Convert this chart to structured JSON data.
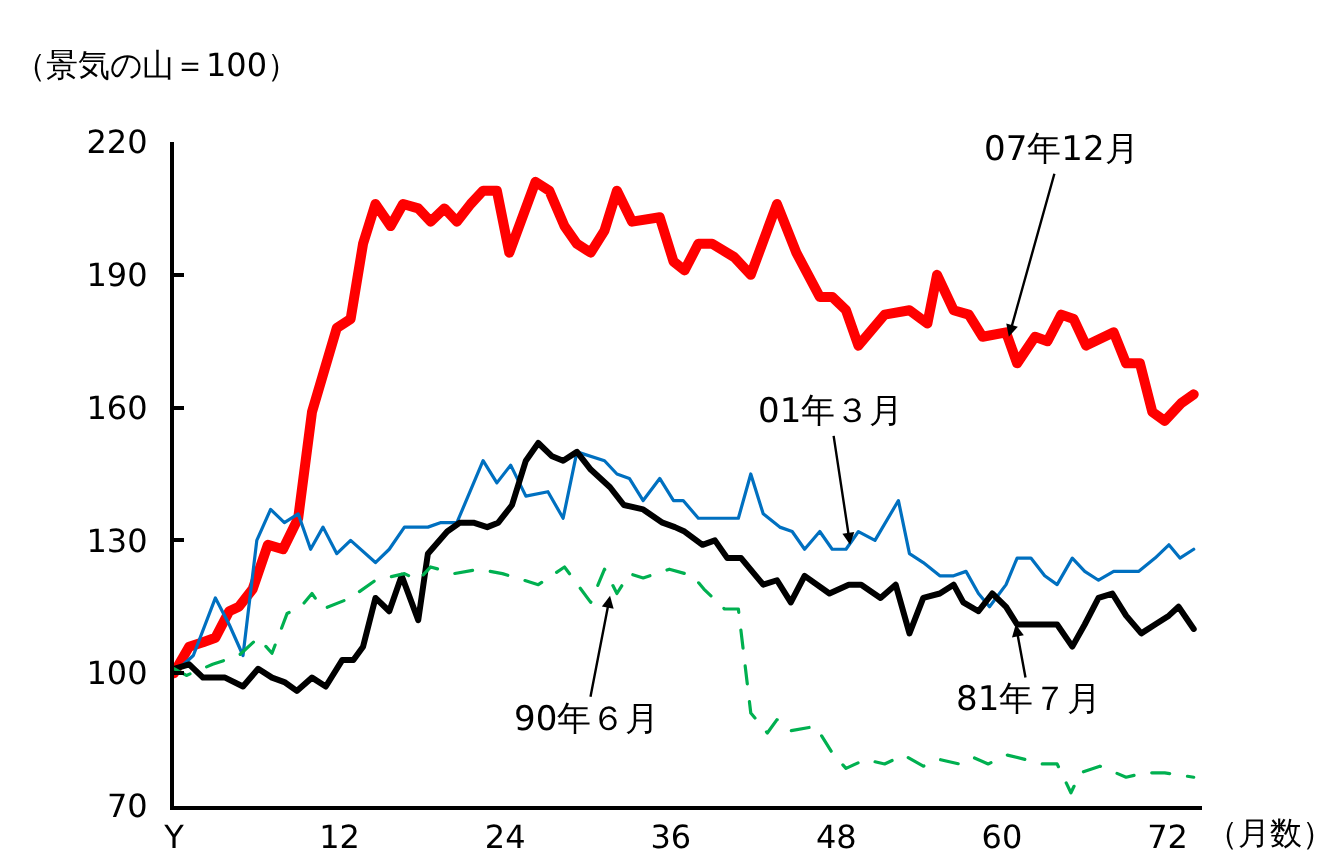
{
  "chart_data": {
    "type": "line",
    "ylabel": "（景気の山＝100）",
    "xlabel": "（月数）",
    "xlim": [
      0,
      74.5
    ],
    "ylim": [
      70,
      220
    ],
    "xticks": [
      {
        "value": 0,
        "label": "Y"
      },
      12,
      24,
      36,
      48,
      60,
      72
    ],
    "yticks": [
      70,
      100,
      130,
      160,
      190,
      220
    ],
    "grid": false,
    "marker": "none",
    "series": [
      {
        "color": "#ff0000",
        "x": [
          0,
          1.1,
          2.1,
          3,
          4,
          4.7,
          5.7,
          6.8,
          7.9,
          9,
          10,
          11.8,
          12.8,
          13.7,
          14.6,
          15.7,
          16.6,
          17.7,
          18.6,
          19.6,
          20.5,
          21.5,
          22.4,
          23.4,
          24.3,
          26.2,
          27.2,
          28.3,
          29.2,
          30.2,
          31.2,
          32.1,
          33.2,
          35.2,
          36.2,
          37,
          38,
          39,
          40.6,
          41.8,
          43.7,
          45.1,
          46.8,
          47.7,
          48.7,
          49.6,
          51.5,
          53.3,
          54.6,
          55.3,
          56.5,
          57.6,
          58.6,
          60.3,
          61.1,
          62.4,
          63.3,
          64.3,
          65.2,
          66.1,
          68.1,
          69,
          70,
          70.9,
          71.8,
          73,
          73.9
        ],
        "values": [
          100,
          106,
          107,
          108,
          114,
          115,
          119,
          129,
          128,
          135,
          159,
          178,
          180,
          197,
          206,
          201,
          206,
          205,
          202,
          205,
          202,
          206,
          209,
          209,
          195,
          211,
          209,
          201,
          197,
          195,
          200,
          209,
          202,
          203,
          193,
          191,
          197,
          197,
          194,
          190,
          206,
          195,
          185,
          185,
          182,
          174,
          181,
          182,
          179,
          190,
          182,
          181,
          176,
          177,
          170,
          176,
          175,
          181,
          180,
          174,
          177,
          170,
          170,
          159,
          157,
          161,
          163
        ]
      },
      {
        "color": "#0070c0",
        "x": [
          0,
          1.4,
          3,
          4,
          5,
          6,
          7,
          8,
          9,
          9.9,
          10.8,
          11.8,
          12.8,
          14.6,
          15.6,
          16.7,
          18.4,
          19.3,
          20.5,
          22.4,
          23.4,
          24.4,
          25.5,
          27.1,
          28.2,
          29.2,
          31.2,
          32.1,
          33,
          34,
          35.2,
          36.2,
          36.9,
          38,
          40.9,
          41.8,
          42.7,
          43.9,
          44.8,
          45.7,
          46.8,
          47.7,
          48.7,
          49.6,
          50.8,
          52.5,
          53.3,
          54.3,
          55.5,
          56.5,
          57.4,
          58.3,
          59.1,
          60.3,
          61.1,
          62.1,
          63.1,
          64,
          65.1,
          66,
          67,
          68.1,
          69,
          69.9,
          71.1,
          72.1,
          72.9,
          73.9
        ],
        "values": [
          100,
          104,
          117,
          111,
          104,
          130,
          137,
          134,
          136,
          128,
          133,
          127,
          130,
          125,
          128,
          133,
          133,
          134,
          134,
          148,
          143,
          147,
          140,
          141,
          135,
          150,
          148,
          145,
          144,
          139,
          144,
          139,
          139,
          135,
          135,
          145,
          136,
          133,
          132,
          128,
          132,
          128,
          128,
          132,
          130,
          139,
          127,
          125,
          122,
          122,
          123,
          118,
          115,
          120,
          126,
          126,
          122,
          120,
          126,
          123,
          121,
          123,
          123,
          123,
          126,
          129,
          126,
          128
        ]
      },
      {
        "color": "#000000",
        "x": [
          0,
          1.1,
          2.1,
          3.7,
          5,
          6.1,
          7.1,
          8,
          8.9,
          10,
          11,
          12.2,
          13,
          13.7,
          14.6,
          15.6,
          16.5,
          17.7,
          18.4,
          19.8,
          20.7,
          21.7,
          22.7,
          23.5,
          24.5,
          25.5,
          26.4,
          27.4,
          28.2,
          29.2,
          30.2,
          31.6,
          32.6,
          34,
          35.4,
          36.3,
          37,
          38.3,
          39.2,
          40.1,
          41.1,
          42.7,
          43.7,
          44.7,
          45.7,
          47.5,
          48.9,
          49.8,
          51.2,
          52.3,
          53.3,
          54.3,
          55.5,
          56.5,
          57.2,
          58.3,
          59.3,
          60.3,
          61.1,
          64,
          65.1,
          66,
          67,
          68,
          69,
          70.1,
          71.1,
          72.1,
          72.8,
          73.9
        ],
        "values": [
          101,
          102,
          99,
          99,
          97,
          101,
          99,
          98,
          96,
          99,
          97,
          103,
          103,
          106,
          117,
          114,
          122,
          112,
          127,
          132,
          134,
          134,
          133,
          134,
          138,
          148,
          152,
          149,
          148,
          150,
          146,
          142,
          138,
          137,
          134,
          133,
          132,
          129,
          130,
          126,
          126,
          120,
          121,
          116,
          122,
          118,
          120,
          120,
          117,
          120,
          109,
          117,
          118,
          120,
          116,
          114,
          118,
          115,
          111,
          111,
          106,
          111,
          117,
          118,
          113,
          109,
          111,
          113,
          115,
          110
        ]
      },
      {
        "color": "#00b050",
        "line_style": "dashed",
        "x": [
          0,
          0.9,
          2.8,
          4.7,
          6.1,
          7.1,
          8.2,
          9.2,
          10,
          10.8,
          12.8,
          14.6,
          16.7,
          17.7,
          18.6,
          20.3,
          22.1,
          23.8,
          26.4,
          28.3,
          30.2,
          31.2,
          32.1,
          33,
          34,
          35.9,
          37.6,
          38.4,
          39.9,
          40.9,
          41.8,
          43,
          43.7,
          44.7,
          46.5,
          47.7,
          48.7,
          50.1,
          51.5,
          52.9,
          54.3,
          55.5,
          56.9,
          57.9,
          59,
          60.4,
          61.7,
          62.8,
          64,
          65,
          65.7,
          67.1,
          69,
          70.4,
          71.8,
          73.9
        ],
        "values": [
          101,
          99.5,
          102,
          104,
          108,
          104.5,
          113.5,
          115,
          118,
          114.5,
          117,
          121,
          122.5,
          121,
          124,
          122.5,
          123.5,
          122.5,
          120,
          124,
          116,
          123.5,
          118,
          122.5,
          121.5,
          123.5,
          122,
          119,
          114.5,
          114.5,
          91,
          86.5,
          89.5,
          87,
          88,
          82,
          78.5,
          80.5,
          79.5,
          81.5,
          79,
          80.5,
          79.5,
          81,
          79.5,
          81.5,
          80.5,
          79.5,
          79.5,
          73,
          77.5,
          79,
          76.5,
          77.5,
          77.5,
          76.5
        ]
      }
    ],
    "annotations": [
      {
        "text": "07年12月",
        "x": 60.5,
        "y": 176
      },
      {
        "text": "01年３月",
        "x": 49,
        "y": 129
      },
      {
        "text": "90年６月",
        "x": 31.6,
        "y": 117.5
      },
      {
        "text": "81年７月",
        "x": 61,
        "y": 111
      }
    ]
  }
}
